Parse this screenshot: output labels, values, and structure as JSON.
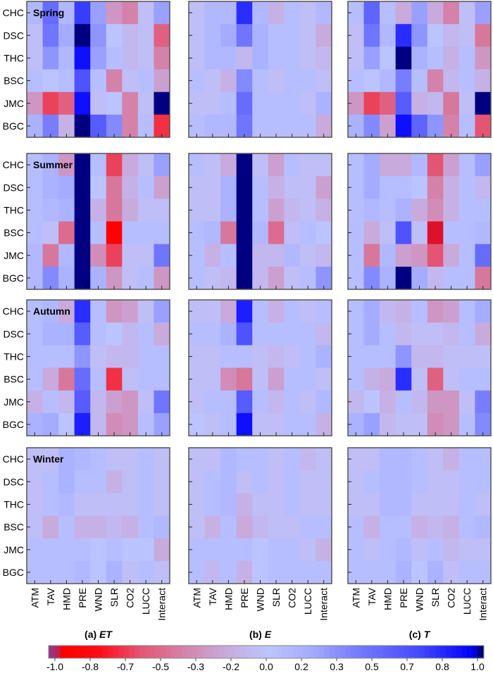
{
  "chart_data": {
    "type": "heatmap",
    "row_labels": [
      "CHC",
      "DSC",
      "THC",
      "BSC",
      "JMC",
      "BGC"
    ],
    "col_labels": [
      "ATM",
      "TAV",
      "HMD",
      "PRE",
      "WND",
      "SLR",
      "CO2",
      "LUCC",
      "Interact"
    ],
    "seasons": [
      "Spring",
      "Summer",
      "Autumn",
      "Winter"
    ],
    "columns": [
      {
        "label_prefix": "(a)",
        "label_var": "ET"
      },
      {
        "label_prefix": "(b)",
        "label_var": "E"
      },
      {
        "label_prefix": "(c)",
        "label_var": "T"
      }
    ],
    "value_range": [
      -1.0,
      1.0
    ],
    "colorbar": {
      "ticks": [
        "-1.0",
        "-0.8",
        "-0.7",
        "-0.5",
        "-0.3",
        "-0.2",
        "0.0",
        "0.2",
        "0.3",
        "0.5",
        "0.7",
        "0.8",
        "1.0"
      ],
      "tick_values": [
        -1.0,
        -0.8,
        -0.7,
        -0.5,
        -0.3,
        -0.2,
        0.0,
        0.2,
        0.3,
        0.5,
        0.7,
        0.8,
        1.0
      ]
    },
    "panels": {
      "Spring": {
        "ET": [
          [
            0.1,
            0.5,
            0.1,
            0.75,
            0.25,
            -0.3,
            -0.4,
            -0.05,
            0.25
          ],
          [
            -0.05,
            0.45,
            0.2,
            1.0,
            0.3,
            0.0,
            -0.1,
            -0.05,
            -0.55
          ],
          [
            -0.05,
            0.3,
            0.1,
            0.9,
            0.25,
            0.05,
            -0.1,
            -0.05,
            -0.4
          ],
          [
            0.05,
            0.0,
            0.05,
            0.65,
            0.05,
            -0.4,
            -0.05,
            0.05,
            -0.25
          ],
          [
            -0.3,
            -0.65,
            -0.55,
            0.9,
            -0.05,
            0.0,
            -0.4,
            -0.05,
            1.0
          ],
          [
            0.15,
            0.4,
            -0.15,
            1.0,
            0.6,
            0.35,
            -0.4,
            0.05,
            -0.7
          ]
        ],
        "E": [
          [
            -0.05,
            0.1,
            0.1,
            0.8,
            0.1,
            -0.15,
            0.05,
            -0.05,
            0.1
          ],
          [
            -0.05,
            0.1,
            0.2,
            0.45,
            0.15,
            0.05,
            0.05,
            -0.05,
            -0.2
          ],
          [
            -0.05,
            0.1,
            0.1,
            -0.1,
            0.15,
            0.05,
            0.05,
            -0.05,
            -0.1
          ],
          [
            0.05,
            -0.05,
            -0.15,
            0.35,
            0.05,
            -0.05,
            0.05,
            0.05,
            -0.05
          ],
          [
            -0.05,
            -0.05,
            0.05,
            0.5,
            0.05,
            0.05,
            0.05,
            -0.05,
            0.15
          ],
          [
            0.05,
            0.1,
            0.1,
            0.45,
            0.05,
            0.05,
            0.05,
            0.05,
            -0.2
          ]
        ],
        "T": [
          [
            0.05,
            0.55,
            0.05,
            -0.2,
            0.25,
            -0.2,
            -0.4,
            -0.05,
            0.25
          ],
          [
            -0.05,
            0.45,
            0.1,
            0.8,
            0.3,
            0.0,
            -0.1,
            -0.05,
            -0.45
          ],
          [
            -0.05,
            0.25,
            0.0,
            1.0,
            0.15,
            0.05,
            -0.15,
            0.05,
            -0.3
          ],
          [
            0.05,
            0.0,
            0.1,
            0.4,
            0.05,
            -0.4,
            -0.1,
            0.05,
            -0.15
          ],
          [
            -0.3,
            -0.65,
            -0.55,
            0.6,
            -0.15,
            -0.1,
            -0.45,
            -0.05,
            1.0
          ],
          [
            0.15,
            0.35,
            -0.25,
            0.9,
            0.55,
            0.3,
            -0.4,
            0.05,
            -0.6
          ]
        ]
      },
      "Summer": {
        "ET": [
          [
            0.05,
            0.15,
            -0.3,
            1.0,
            0.05,
            -0.65,
            -0.2,
            -0.05,
            0.25
          ],
          [
            0.05,
            0.15,
            0.2,
            1.0,
            0.0,
            -0.45,
            -0.15,
            0.05,
            -0.25
          ],
          [
            0.05,
            0.1,
            0.15,
            1.0,
            -0.15,
            -0.45,
            -0.2,
            -0.05,
            -0.05
          ],
          [
            0.05,
            -0.05,
            -0.5,
            1.0,
            0.05,
            -0.95,
            0.05,
            0.05,
            0.05
          ],
          [
            0.1,
            -0.45,
            0.1,
            1.0,
            -0.35,
            -0.65,
            -0.05,
            -0.05,
            0.45
          ],
          [
            0.1,
            0.35,
            0.15,
            1.0,
            0.15,
            -0.3,
            -0.05,
            0.05,
            -0.3
          ]
        ],
        "E": [
          [
            0.05,
            -0.05,
            -0.2,
            1.0,
            -0.05,
            -0.25,
            0.05,
            -0.05,
            -0.05
          ],
          [
            -0.05,
            -0.05,
            0.15,
            1.0,
            0.05,
            -0.15,
            -0.05,
            -0.05,
            -0.25
          ],
          [
            -0.05,
            -0.05,
            0.15,
            1.0,
            0.05,
            -0.25,
            -0.1,
            -0.05,
            -0.15
          ],
          [
            0.05,
            0.1,
            -0.45,
            1.0,
            0.1,
            -0.5,
            -0.05,
            0.05,
            0.0
          ],
          [
            0.05,
            -0.15,
            0.05,
            1.0,
            -0.1,
            -0.1,
            0.1,
            -0.05,
            -0.1
          ],
          [
            0.05,
            -0.05,
            -0.1,
            1.0,
            -0.1,
            -0.25,
            -0.05,
            0.05,
            0.3
          ]
        ],
        "T": [
          [
            0.05,
            0.2,
            -0.2,
            -0.2,
            0.1,
            -0.6,
            -0.25,
            0.05,
            0.25
          ],
          [
            0.05,
            0.2,
            0.05,
            0.05,
            0.0,
            -0.4,
            -0.15,
            0.05,
            -0.1
          ],
          [
            0.05,
            0.1,
            0.05,
            0.15,
            -0.2,
            -0.35,
            -0.15,
            0.05,
            0.05
          ],
          [
            0.05,
            -0.2,
            -0.05,
            0.65,
            -0.05,
            -0.98,
            0.05,
            0.05,
            0.1
          ],
          [
            0.05,
            -0.45,
            0.1,
            -0.25,
            -0.3,
            -0.6,
            -0.2,
            0.05,
            0.5
          ],
          [
            0.05,
            0.35,
            0.15,
            1.0,
            0.2,
            -0.1,
            0.05,
            0.05,
            -0.45
          ]
        ]
      },
      "Autumn": {
        "ET": [
          [
            0.05,
            0.1,
            -0.2,
            0.8,
            0.05,
            -0.3,
            -0.25,
            -0.05,
            0.25
          ],
          [
            0.05,
            0.15,
            0.15,
            0.6,
            0.05,
            0.0,
            -0.1,
            0.05,
            -0.2
          ],
          [
            0.05,
            0.05,
            0.05,
            0.3,
            -0.05,
            -0.1,
            -0.1,
            0.05,
            0.05
          ],
          [
            0.05,
            -0.2,
            -0.45,
            0.5,
            0.05,
            -0.7,
            -0.05,
            0.05,
            0.05
          ],
          [
            -0.15,
            0.05,
            -0.1,
            0.6,
            -0.1,
            -0.25,
            -0.3,
            -0.05,
            0.45
          ],
          [
            0.15,
            0.2,
            0.0,
            0.85,
            -0.1,
            -0.35,
            -0.3,
            0.05,
            0.25
          ]
        ],
        "E": [
          [
            -0.05,
            -0.05,
            -0.2,
            0.85,
            0.05,
            -0.15,
            0.05,
            -0.05,
            0.05
          ],
          [
            0.05,
            0.05,
            0.15,
            0.65,
            0.05,
            0.05,
            0.05,
            0.05,
            -0.1
          ],
          [
            -0.05,
            -0.05,
            0.05,
            0.05,
            -0.05,
            -0.1,
            -0.05,
            0.05,
            0.15
          ],
          [
            -0.05,
            -0.05,
            -0.35,
            -0.45,
            -0.05,
            -0.25,
            0.05,
            0.05,
            -0.05
          ],
          [
            -0.05,
            0.05,
            0.05,
            0.6,
            0.05,
            -0.1,
            0.05,
            -0.05,
            0.1
          ],
          [
            0.0,
            -0.05,
            0.05,
            0.9,
            -0.05,
            -0.05,
            0.05,
            0.05,
            -0.15
          ]
        ],
        "T": [
          [
            0.05,
            0.2,
            -0.1,
            -0.15,
            0.05,
            -0.3,
            -0.25,
            0.05,
            0.2
          ],
          [
            0.05,
            0.2,
            0.05,
            -0.1,
            -0.05,
            -0.05,
            -0.1,
            0.05,
            -0.2
          ],
          [
            0.05,
            0.05,
            0.05,
            0.3,
            -0.1,
            -0.1,
            -0.05,
            -0.05,
            -0.05
          ],
          [
            0.05,
            -0.15,
            -0.2,
            0.8,
            -0.05,
            -0.55,
            -0.05,
            0.05,
            0.05
          ],
          [
            -0.1,
            0.0,
            -0.15,
            0.05,
            -0.1,
            -0.3,
            -0.3,
            -0.05,
            0.4
          ],
          [
            0.15,
            0.25,
            -0.1,
            -0.05,
            -0.05,
            -0.35,
            -0.3,
            0.05,
            0.35
          ]
        ]
      },
      "Winter": {
        "ET": [
          [
            -0.05,
            -0.05,
            0.15,
            0.1,
            0.05,
            -0.05,
            -0.05,
            0.05,
            -0.05
          ],
          [
            -0.05,
            0.05,
            0.15,
            0.05,
            0.05,
            -0.15,
            -0.05,
            0.05,
            -0.05
          ],
          [
            -0.05,
            0.05,
            0.1,
            -0.05,
            -0.05,
            -0.05,
            -0.05,
            0.05,
            -0.05
          ],
          [
            -0.05,
            -0.2,
            0.05,
            -0.15,
            -0.15,
            -0.1,
            -0.15,
            0.05,
            0.1
          ],
          [
            0.05,
            0.05,
            0.05,
            0.05,
            0.0,
            0.05,
            0.0,
            0.0,
            -0.2
          ],
          [
            0.05,
            0.05,
            0.05,
            0.1,
            0.0,
            0.15,
            -0.05,
            0.05,
            -0.05
          ]
        ],
        "E": [
          [
            -0.05,
            -0.05,
            0.1,
            0.05,
            0.05,
            -0.05,
            0.05,
            -0.1,
            -0.05
          ],
          [
            -0.05,
            0.05,
            0.1,
            -0.05,
            0.05,
            -0.05,
            0.05,
            -0.05,
            -0.05
          ],
          [
            -0.05,
            0.05,
            0.1,
            -0.15,
            -0.05,
            -0.05,
            0.05,
            -0.05,
            -0.05
          ],
          [
            -0.05,
            -0.15,
            0.05,
            -0.2,
            -0.1,
            -0.05,
            -0.05,
            0.05,
            0.05
          ],
          [
            0.05,
            0.05,
            0.05,
            0.05,
            0.0,
            0.05,
            0.05,
            -0.05,
            -0.15
          ],
          [
            0.05,
            -0.1,
            0.05,
            -0.15,
            0.0,
            0.05,
            0.05,
            0.05,
            0.05
          ]
        ],
        "T": [
          [
            -0.05,
            -0.05,
            0.1,
            0.1,
            0.05,
            -0.05,
            -0.15,
            0.05,
            0.05
          ],
          [
            -0.05,
            0.05,
            0.1,
            0.1,
            0.05,
            -0.05,
            -0.05,
            0.05,
            0.05
          ],
          [
            -0.05,
            -0.05,
            0.1,
            0.1,
            -0.05,
            -0.05,
            -0.05,
            0.05,
            -0.05
          ],
          [
            0.05,
            -0.15,
            0.05,
            0.05,
            -0.15,
            -0.1,
            -0.15,
            0.05,
            0.1
          ],
          [
            0.05,
            -0.05,
            0.05,
            0.1,
            -0.05,
            0.05,
            -0.1,
            -0.05,
            -0.05
          ],
          [
            0.05,
            0.05,
            0.05,
            0.15,
            0.0,
            0.15,
            -0.05,
            0.05,
            0.05
          ]
        ]
      }
    }
  }
}
